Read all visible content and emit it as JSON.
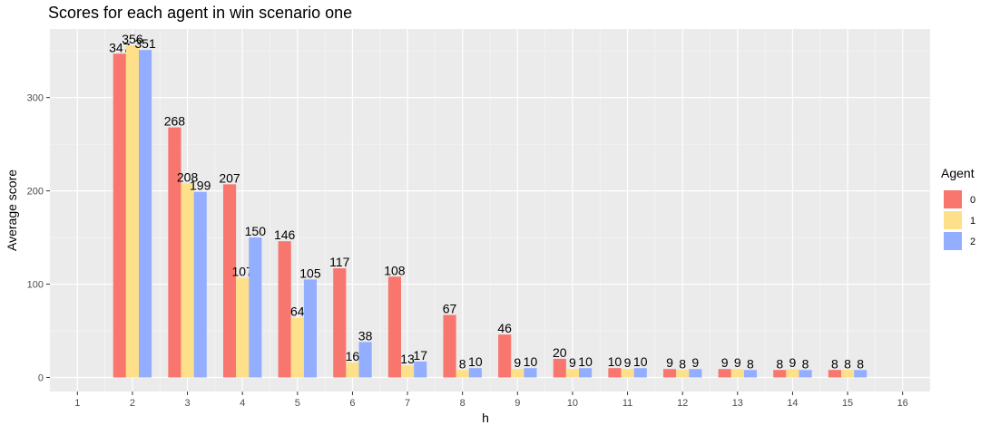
{
  "chart_data": {
    "type": "bar",
    "title": "Scores for each agent in win scenario one",
    "xlabel": "h",
    "ylabel": "Average score",
    "x": [
      2,
      3,
      4,
      5,
      6,
      7,
      8,
      9,
      10,
      11,
      12,
      13,
      14,
      15
    ],
    "xlim": [
      1,
      16
    ],
    "ylim": [
      0,
      356
    ],
    "x_ticks": [
      "1",
      "2",
      "3",
      "4",
      "5",
      "6",
      "7",
      "8",
      "9",
      "10",
      "11",
      "12",
      "13",
      "14",
      "15",
      "16"
    ],
    "y_ticks": [
      "0",
      "100",
      "200",
      "300"
    ],
    "grid": true,
    "legend": {
      "title": "Agent",
      "position": "right"
    },
    "series": [
      {
        "name": "0",
        "color": "#F8766D",
        "values": [
          347,
          268,
          207,
          146,
          117,
          108,
          67,
          46,
          20,
          10,
          9,
          9,
          8,
          8
        ]
      },
      {
        "name": "1",
        "color": "#FFE08A",
        "values": [
          356,
          208,
          107,
          64,
          16,
          13,
          8,
          9,
          9,
          9,
          8,
          9,
          9,
          8
        ]
      },
      {
        "name": "2",
        "color": "#93AEFF",
        "values": [
          351,
          199,
          150,
          105,
          38,
          17,
          10,
          10,
          10,
          10,
          9,
          8,
          8,
          8
        ]
      }
    ]
  }
}
